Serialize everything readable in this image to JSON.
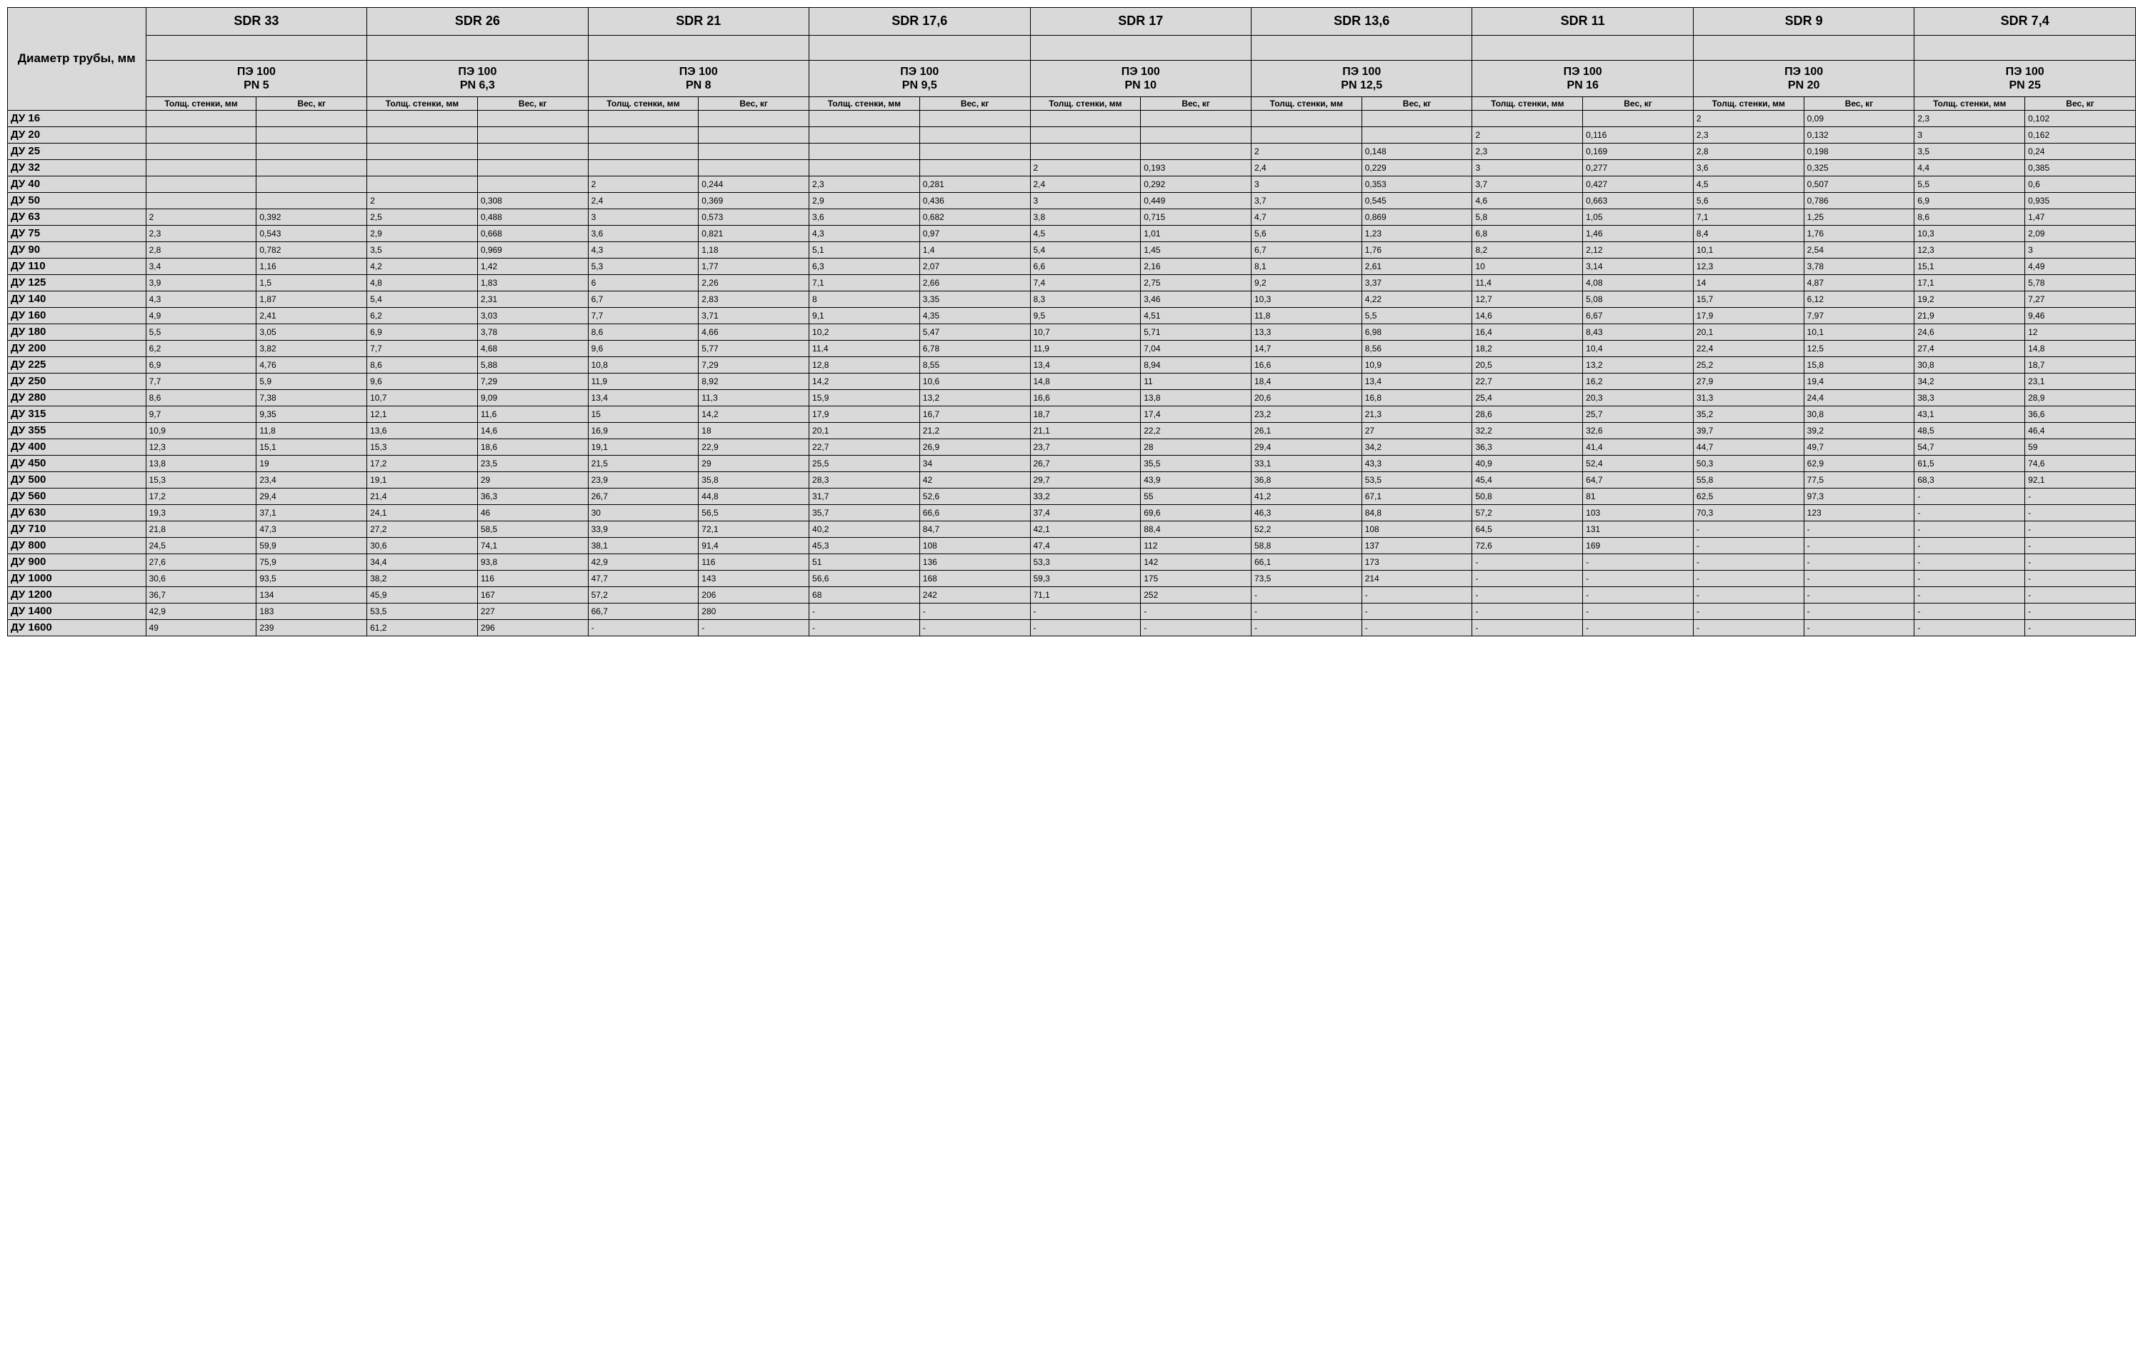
{
  "header": {
    "diameter_label": "Диаметр трубы, мм",
    "sdr_groups": [
      {
        "sdr": "SDR 33",
        "pn": "ПЭ 100\nPN 5"
      },
      {
        "sdr": "SDR 26",
        "pn": "ПЭ 100\nPN 6,3"
      },
      {
        "sdr": "SDR 21",
        "pn": "ПЭ 100\nPN 8"
      },
      {
        "sdr": "SDR 17,6",
        "pn": "ПЭ 100\nPN 9,5"
      },
      {
        "sdr": "SDR 17",
        "pn": "ПЭ 100\nPN 10"
      },
      {
        "sdr": "SDR 13,6",
        "pn": "ПЭ 100\nPN 12,5"
      },
      {
        "sdr": "SDR 11",
        "pn": "ПЭ 100\nPN 16"
      },
      {
        "sdr": "SDR 9",
        "pn": "ПЭ 100\nPN 20"
      },
      {
        "sdr": "SDR 7,4",
        "pn": "ПЭ 100\nPN 25"
      }
    ],
    "sub_cols": [
      "Толщ. стенки, мм",
      "Вес, кг"
    ]
  },
  "rows": [
    {
      "label": "ДУ 16",
      "v": [
        "",
        "",
        "",
        "",
        "",
        "",
        "",
        "",
        "",
        "",
        "",
        "",
        "",
        "",
        "2",
        "0,09",
        "2,3",
        "0,102"
      ]
    },
    {
      "label": "ДУ 20",
      "v": [
        "",
        "",
        "",
        "",
        "",
        "",
        "",
        "",
        "",
        "",
        "",
        "",
        "2",
        "0,116",
        "2,3",
        "0,132",
        "3",
        "0,162"
      ]
    },
    {
      "label": "ДУ 25",
      "v": [
        "",
        "",
        "",
        "",
        "",
        "",
        "",
        "",
        "",
        "",
        "2",
        "0,148",
        "2,3",
        "0,169",
        "2,8",
        "0,198",
        "3,5",
        "0,24"
      ]
    },
    {
      "label": "ДУ 32",
      "v": [
        "",
        "",
        "",
        "",
        "",
        "",
        "",
        "",
        "2",
        "0,193",
        "2,4",
        "0,229",
        "3",
        "0,277",
        "3,6",
        "0,325",
        "4,4",
        "0,385"
      ]
    },
    {
      "label": "ДУ 40",
      "v": [
        "",
        "",
        "",
        "",
        "2",
        "0,244",
        "2,3",
        "0,281",
        "2,4",
        "0,292",
        "3",
        "0,353",
        "3,7",
        "0,427",
        "4,5",
        "0,507",
        "5,5",
        "0,6"
      ]
    },
    {
      "label": "ДУ 50",
      "v": [
        "",
        "",
        "2",
        "0,308",
        "2,4",
        "0,369",
        "2,9",
        "0,436",
        "3",
        "0,449",
        "3,7",
        "0,545",
        "4,6",
        "0,663",
        "5,6",
        "0,786",
        "6,9",
        "0,935"
      ]
    },
    {
      "label": "ДУ 63",
      "v": [
        "2",
        "0,392",
        "2,5",
        "0,488",
        "3",
        "0,573",
        "3,6",
        "0,682",
        "3,8",
        "0,715",
        "4,7",
        "0,869",
        "5,8",
        "1,05",
        "7,1",
        "1,25",
        "8,6",
        "1,47"
      ]
    },
    {
      "label": "ДУ 75",
      "v": [
        "2,3",
        "0,543",
        "2,9",
        "0,668",
        "3,6",
        "0,821",
        "4,3",
        "0,97",
        "4,5",
        "1,01",
        "5,6",
        "1,23",
        "6,8",
        "1,46",
        "8,4",
        "1,76",
        "10,3",
        "2,09"
      ]
    },
    {
      "label": "ДУ 90",
      "v": [
        "2,8",
        "0,782",
        "3,5",
        "0,969",
        "4,3",
        "1,18",
        "5,1",
        "1,4",
        "5,4",
        "1,45",
        "6,7",
        "1,76",
        "8,2",
        "2,12",
        "10,1",
        "2,54",
        "12,3",
        "3"
      ]
    },
    {
      "label": "ДУ 110",
      "v": [
        "3,4",
        "1,16",
        "4,2",
        "1,42",
        "5,3",
        "1,77",
        "6,3",
        "2,07",
        "6,6",
        "2,16",
        "8,1",
        "2,61",
        "10",
        "3,14",
        "12,3",
        "3,78",
        "15,1",
        "4,49"
      ]
    },
    {
      "label": "ДУ 125",
      "v": [
        "3,9",
        "1,5",
        "4,8",
        "1,83",
        "6",
        "2,26",
        "7,1",
        "2,66",
        "7,4",
        "2,75",
        "9,2",
        "3,37",
        "11,4",
        "4,08",
        "14",
        "4,87",
        "17,1",
        "5,78"
      ]
    },
    {
      "label": "ДУ 140",
      "v": [
        "4,3",
        "1,87",
        "5,4",
        "2,31",
        "6,7",
        "2,83",
        "8",
        "3,35",
        "8,3",
        "3,46",
        "10,3",
        "4,22",
        "12,7",
        "5,08",
        "15,7",
        "6,12",
        "19,2",
        "7,27"
      ]
    },
    {
      "label": "ДУ 160",
      "v": [
        "4,9",
        "2,41",
        "6,2",
        "3,03",
        "7,7",
        "3,71",
        "9,1",
        "4,35",
        "9,5",
        "4,51",
        "11,8",
        "5,5",
        "14,6",
        "6,67",
        "17,9",
        "7,97",
        "21,9",
        "9,46"
      ]
    },
    {
      "label": "ДУ 180",
      "v": [
        "5,5",
        "3,05",
        "6,9",
        "3,78",
        "8,6",
        "4,66",
        "10,2",
        "5,47",
        "10,7",
        "5,71",
        "13,3",
        "6,98",
        "16,4",
        "8,43",
        "20,1",
        "10,1",
        "24,6",
        "12"
      ]
    },
    {
      "label": "ДУ 200",
      "v": [
        "6,2",
        "3,82",
        "7,7",
        "4,68",
        "9,6",
        "5,77",
        "11,4",
        "6,78",
        "11,9",
        "7,04",
        "14,7",
        "8,56",
        "18,2",
        "10,4",
        "22,4",
        "12,5",
        "27,4",
        "14,8"
      ]
    },
    {
      "label": "ДУ 225",
      "v": [
        "6,9",
        "4,76",
        "8,6",
        "5,88",
        "10,8",
        "7,29",
        "12,8",
        "8,55",
        "13,4",
        "8,94",
        "16,6",
        "10,9",
        "20,5",
        "13,2",
        "25,2",
        "15,8",
        "30,8",
        "18,7"
      ]
    },
    {
      "label": "ДУ 250",
      "v": [
        "7,7",
        "5,9",
        "9,6",
        "7,29",
        "11,9",
        "8,92",
        "14,2",
        "10,6",
        "14,8",
        "11",
        "18,4",
        "13,4",
        "22,7",
        "16,2",
        "27,9",
        "19,4",
        "34,2",
        "23,1"
      ]
    },
    {
      "label": "ДУ 280",
      "v": [
        "8,6",
        "7,38",
        "10,7",
        "9,09",
        "13,4",
        "11,3",
        "15,9",
        "13,2",
        "16,6",
        "13,8",
        "20,6",
        "16,8",
        "25,4",
        "20,3",
        "31,3",
        "24,4",
        "38,3",
        "28,9"
      ]
    },
    {
      "label": "ДУ 315",
      "v": [
        "9,7",
        "9,35",
        "12,1",
        "11,6",
        "15",
        "14,2",
        "17,9",
        "16,7",
        "18,7",
        "17,4",
        "23,2",
        "21,3",
        "28,6",
        "25,7",
        "35,2",
        "30,8",
        "43,1",
        "36,6"
      ]
    },
    {
      "label": "ДУ 355",
      "v": [
        "10,9",
        "11,8",
        "13,6",
        "14,6",
        "16,9",
        "18",
        "20,1",
        "21,2",
        "21,1",
        "22,2",
        "26,1",
        "27",
        "32,2",
        "32,6",
        "39,7",
        "39,2",
        "48,5",
        "46,4"
      ]
    },
    {
      "label": "ДУ 400",
      "v": [
        "12,3",
        "15,1",
        "15,3",
        "18,6",
        "19,1",
        "22,9",
        "22,7",
        "26,9",
        "23,7",
        "28",
        "29,4",
        "34,2",
        "36,3",
        "41,4",
        "44,7",
        "49,7",
        "54,7",
        "59"
      ]
    },
    {
      "label": "ДУ 450",
      "v": [
        "13,8",
        "19",
        "17,2",
        "23,5",
        "21,5",
        "29",
        "25,5",
        "34",
        "26,7",
        "35,5",
        "33,1",
        "43,3",
        "40,9",
        "52,4",
        "50,3",
        "62,9",
        "61,5",
        "74,6"
      ]
    },
    {
      "label": "ДУ 500",
      "v": [
        "15,3",
        "23,4",
        "19,1",
        "29",
        "23,9",
        "35,8",
        "28,3",
        "42",
        "29,7",
        "43,9",
        "36,8",
        "53,5",
        "45,4",
        "64,7",
        "55,8",
        "77,5",
        "68,3",
        "92,1"
      ]
    },
    {
      "label": "ДУ 560",
      "v": [
        "17,2",
        "29,4",
        "21,4",
        "36,3",
        "26,7",
        "44,8",
        "31,7",
        "52,6",
        "33,2",
        "55",
        "41,2",
        "67,1",
        "50,8",
        "81",
        "62,5",
        "97,3",
        "-",
        "-"
      ]
    },
    {
      "label": "ДУ 630",
      "v": [
        "19,3",
        "37,1",
        "24,1",
        "46",
        "30",
        "56,5",
        "35,7",
        "66,6",
        "37,4",
        "69,6",
        "46,3",
        "84,8",
        "57,2",
        "103",
        "70,3",
        "123",
        "-",
        "-"
      ]
    },
    {
      "label": "ДУ 710",
      "v": [
        "21,8",
        "47,3",
        "27,2",
        "58,5",
        "33,9",
        "72,1",
        "40,2",
        "84,7",
        "42,1",
        "88,4",
        "52,2",
        "108",
        "64,5",
        "131",
        "-",
        "-",
        "-",
        "-"
      ]
    },
    {
      "label": "ДУ 800",
      "v": [
        "24,5",
        "59,9",
        "30,6",
        "74,1",
        "38,1",
        "91,4",
        "45,3",
        "108",
        "47,4",
        "112",
        "58,8",
        "137",
        "72,6",
        "169",
        "-",
        "-",
        "-",
        "-"
      ]
    },
    {
      "label": "ДУ 900",
      "v": [
        "27,6",
        "75,9",
        "34,4",
        "93,8",
        "42,9",
        "116",
        "51",
        "136",
        "53,3",
        "142",
        "66,1",
        "173",
        "-",
        "-",
        "-",
        "-",
        "-",
        "-"
      ]
    },
    {
      "label": "ДУ 1000",
      "v": [
        "30,6",
        "93,5",
        "38,2",
        "116",
        "47,7",
        "143",
        "56,6",
        "168",
        "59,3",
        "175",
        "73,5",
        "214",
        "-",
        "-",
        "-",
        "-",
        "-",
        "-"
      ]
    },
    {
      "label": "ДУ 1200",
      "v": [
        "36,7",
        "134",
        "45,9",
        "167",
        "57,2",
        "206",
        "68",
        "242",
        "71,1",
        "252",
        "-",
        "-",
        "-",
        "-",
        "-",
        "-",
        "-",
        "-"
      ]
    },
    {
      "label": "ДУ 1400",
      "v": [
        "42,9",
        "183",
        "53,5",
        "227",
        "66,7",
        "280",
        "-",
        "-",
        "-",
        "-",
        "-",
        "-",
        "-",
        "-",
        "-",
        "-",
        "-",
        "-"
      ]
    },
    {
      "label": "ДУ 1600",
      "v": [
        "49",
        "239",
        "61,2",
        "296",
        "-",
        "-",
        "-",
        "-",
        "-",
        "-",
        "-",
        "-",
        "-",
        "-",
        "-",
        "-",
        "-",
        "-"
      ]
    }
  ],
  "style": {
    "header_bg": "#d9d9d9",
    "cell_bg": "#d9d9d9",
    "border_color": "#000000",
    "font_family": "Arial"
  }
}
